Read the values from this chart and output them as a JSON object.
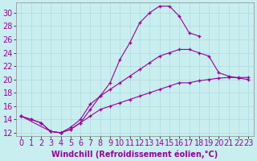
{
  "xlabel": "Windchill (Refroidissement éolien,°C)",
  "bg_color": "#c8eef0",
  "grid_color": "#b0d8dc",
  "line_color": "#990099",
  "xlim": [
    -0.5,
    23.5
  ],
  "ylim": [
    11.5,
    31.5
  ],
  "xticks": [
    0,
    1,
    2,
    3,
    4,
    5,
    6,
    7,
    8,
    9,
    10,
    11,
    12,
    13,
    14,
    15,
    16,
    17,
    18,
    19,
    20,
    21,
    22,
    23
  ],
  "yticks": [
    12,
    14,
    16,
    18,
    20,
    22,
    24,
    26,
    28,
    30
  ],
  "font_size_xlabel": 7,
  "font_size_tick": 7,
  "line1_x": [
    0,
    1,
    2,
    3,
    4,
    5,
    6,
    7,
    8,
    9,
    10,
    11,
    12,
    13,
    14,
    15,
    16,
    17,
    18
  ],
  "line1_y": [
    14.5,
    14.0,
    13.5,
    12.2,
    12.0,
    12.5,
    13.5,
    15.5,
    17.5,
    19.5,
    23.0,
    25.5,
    28.5,
    30.0,
    31.0,
    31.0,
    29.5,
    27.0,
    26.5
  ],
  "line2_x": [
    0,
    3,
    4,
    5,
    6,
    7,
    8,
    9,
    10,
    11,
    12,
    13,
    14,
    15,
    16,
    17,
    18,
    19,
    20,
    21,
    22,
    23
  ],
  "line2_y": [
    14.5,
    12.2,
    12.0,
    12.8,
    14.0,
    16.3,
    17.5,
    18.5,
    19.5,
    20.5,
    21.5,
    22.5,
    23.5,
    24.0,
    24.5,
    24.5,
    24.0,
    23.5,
    21.0,
    20.5,
    20.2,
    20.0
  ],
  "line3_x": [
    0,
    1,
    2,
    3,
    4,
    5,
    6,
    7,
    8,
    9,
    10,
    11,
    12,
    13,
    14,
    15,
    16,
    17,
    18,
    19,
    20,
    21,
    22,
    23
  ],
  "line3_y": [
    14.5,
    14.0,
    13.5,
    12.2,
    12.0,
    12.5,
    13.5,
    14.5,
    15.5,
    16.0,
    16.5,
    17.0,
    17.5,
    18.0,
    18.5,
    19.0,
    19.5,
    19.5,
    19.8,
    20.0,
    20.2,
    20.3,
    20.3,
    20.3
  ]
}
